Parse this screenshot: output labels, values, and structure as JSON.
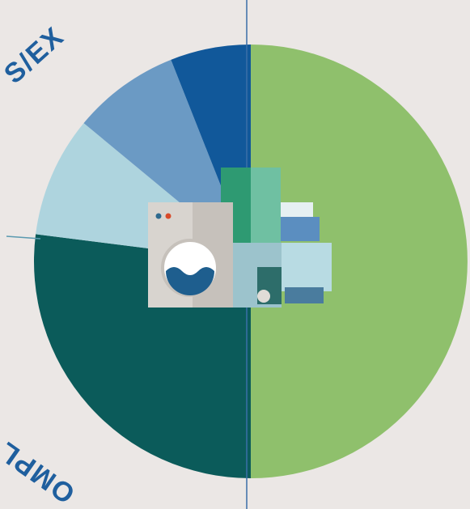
{
  "chart_data": {
    "type": "pie",
    "annotations": [
      "S/EX",
      "OMPL"
    ],
    "values": [
      50,
      27,
      9,
      8,
      6
    ],
    "colors": [
      "#8fc06c",
      "#0b5b5a",
      "#aed4de",
      "#6b9ac4",
      "#11589a"
    ],
    "start_angle": 0,
    "direction": "clockwise"
  }
}
